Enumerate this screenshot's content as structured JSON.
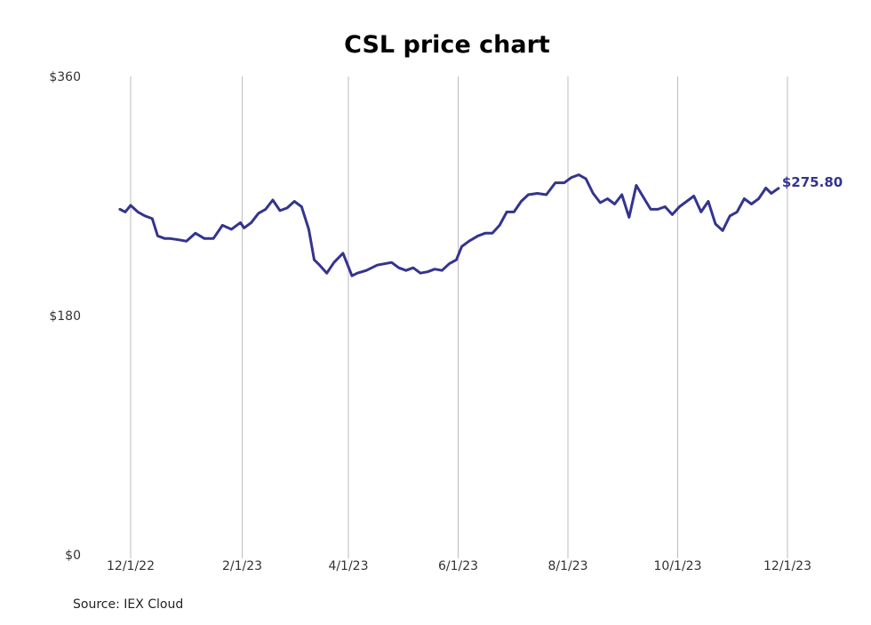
{
  "chart_data": {
    "type": "line",
    "title": "CSL price chart",
    "xlabel": "",
    "ylabel": "",
    "ylim": [
      0,
      360
    ],
    "y_ticks": [
      0,
      180,
      360
    ],
    "y_tick_labels": [
      "$0",
      "$180",
      "$360"
    ],
    "x_ticks": [
      "2022-12-01",
      "2023-02-01",
      "2023-04-01",
      "2023-06-01",
      "2023-08-01",
      "2023-10-01",
      "2023-12-01"
    ],
    "x_tick_labels": [
      "12/1/22",
      "2/1/23",
      "4/1/23",
      "6/1/23",
      "8/1/23",
      "10/1/23",
      "12/1/23"
    ],
    "grid": "vertical",
    "series": [
      {
        "color": "#34348f",
        "end_label": "$275.80",
        "x": [
          "2022-11-25",
          "2022-11-28",
          "2022-12-01",
          "2022-12-05",
          "2022-12-09",
          "2022-12-13",
          "2022-12-16",
          "2022-12-20",
          "2022-12-23",
          "2022-12-28",
          "2023-01-01",
          "2023-01-06",
          "2023-01-11",
          "2023-01-16",
          "2023-01-21",
          "2023-01-26",
          "2023-01-31",
          "2023-02-02",
          "2023-02-06",
          "2023-02-10",
          "2023-02-14",
          "2023-02-18",
          "2023-02-22",
          "2023-02-26",
          "2023-03-02",
          "2023-03-06",
          "2023-03-10",
          "2023-03-13",
          "2023-03-16",
          "2023-03-20",
          "2023-03-24",
          "2023-03-29",
          "2023-04-03",
          "2023-04-06",
          "2023-04-11",
          "2023-04-17",
          "2023-04-21",
          "2023-04-25",
          "2023-04-29",
          "2023-05-03",
          "2023-05-07",
          "2023-05-11",
          "2023-05-15",
          "2023-05-19",
          "2023-05-23",
          "2023-05-27",
          "2023-05-31",
          "2023-06-03",
          "2023-06-07",
          "2023-06-12",
          "2023-06-16",
          "2023-06-20",
          "2023-06-24",
          "2023-06-28",
          "2023-07-02",
          "2023-07-06",
          "2023-07-10",
          "2023-07-15",
          "2023-07-20",
          "2023-07-25",
          "2023-07-30",
          "2023-08-03",
          "2023-08-07",
          "2023-08-11",
          "2023-08-15",
          "2023-08-19",
          "2023-08-23",
          "2023-08-27",
          "2023-08-31",
          "2023-09-04",
          "2023-09-08",
          "2023-09-12",
          "2023-09-16",
          "2023-09-20",
          "2023-09-24",
          "2023-09-28",
          "2023-10-02",
          "2023-10-06",
          "2023-10-10",
          "2023-10-14",
          "2023-10-18",
          "2023-10-22",
          "2023-10-26",
          "2023-10-30",
          "2023-11-03",
          "2023-11-07",
          "2023-11-11",
          "2023-11-15",
          "2023-11-19",
          "2023-11-22",
          "2023-11-26"
        ],
        "y": [
          260,
          258,
          263,
          258,
          255,
          253,
          240,
          238,
          238,
          237,
          236,
          242,
          238,
          238,
          248,
          245,
          250,
          246,
          250,
          257,
          260,
          267,
          259,
          261,
          266,
          262,
          245,
          222,
          218,
          212,
          220,
          227,
          210,
          212,
          214,
          218,
          219,
          220,
          216,
          214,
          216,
          212,
          213,
          215,
          214,
          219,
          222,
          232,
          236,
          240,
          242,
          242,
          248,
          258,
          258,
          266,
          271,
          272,
          271,
          280,
          280,
          284,
          286,
          283,
          272,
          265,
          268,
          264,
          271,
          254,
          278,
          269,
          260,
          260,
          262,
          256,
          262,
          266,
          270,
          258,
          266,
          249,
          244,
          255,
          258,
          268,
          264,
          268,
          276,
          272,
          275.8
        ]
      }
    ]
  },
  "source": "Source: IEX Cloud"
}
